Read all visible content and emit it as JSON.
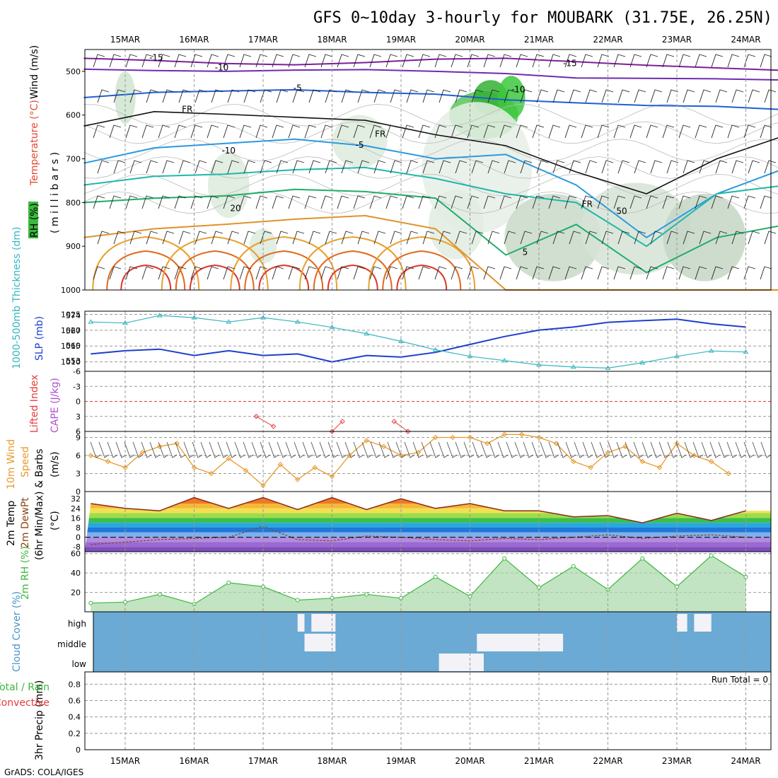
{
  "title": "GFS 0~10day 3-hourly for MOUBARK (31.75E, 26.25N)",
  "credit": "GrADS: COLA/IGES",
  "dates": [
    "15MAR",
    "16MAR",
    "17MAR",
    "18MAR",
    "19MAR",
    "20MAR",
    "21MAR",
    "22MAR",
    "23MAR",
    "24MAR"
  ],
  "colors": {
    "blue": "#1f3fcc",
    "cyan": "#34b6c0",
    "orange": "#e89a2c",
    "green": "#3cb83c",
    "red": "#e83a3a",
    "purple": "#9b30b8",
    "cloud": "#6aaad4",
    "brown": "#8b4513"
  },
  "chart_data": [
    {
      "id": "upper_air",
      "type": "contour",
      "ylabels": {
        "rh": "RH (%)",
        "temperature": "Temperature (°C)",
        "wind": "Wind (m/s)",
        "pressure": "( m i l l i b a r s )"
      },
      "yticks": [
        "500",
        "600",
        "700",
        "800",
        "900",
        "1000"
      ],
      "contour_labels": [
        "-15",
        "-15",
        "-10",
        "-10",
        "-5",
        "-5",
        "FR",
        "FR",
        "FR",
        "20",
        "5",
        "-10",
        "50"
      ],
      "isotherms": [
        {
          "label": "-15",
          "level_mb": [
            470,
            475,
            482,
            485,
            480,
            472,
            470,
            478,
            486,
            492,
            498
          ]
        },
        {
          "label": "-10",
          "level_mb": [
            495,
            498,
            500,
            497,
            496,
            500,
            505,
            515,
            516,
            517,
            520
          ]
        },
        {
          "label": "-5",
          "level_mb": [
            560,
            548,
            545,
            542,
            548,
            552,
            565,
            572,
            578,
            580,
            588
          ]
        },
        {
          "label": "FR",
          "level_mb": [
            625,
            592,
            598,
            605,
            612,
            645,
            670,
            730,
            780,
            700,
            645
          ]
        },
        {
          "label": "-5b",
          "level_mb": [
            710,
            675,
            665,
            655,
            670,
            700,
            690,
            760,
            880,
            780,
            720
          ]
        },
        {
          "label": "5",
          "level_mb": [
            760,
            740,
            735,
            725,
            720,
            745,
            780,
            800,
            900,
            780,
            760
          ]
        },
        {
          "label": "10",
          "level_mb": [
            800,
            790,
            785,
            770,
            775,
            790,
            920,
            850,
            960,
            880,
            850
          ]
        },
        {
          "label": "20",
          "level_mb": [
            880,
            860,
            850,
            838,
            830,
            860,
            1000,
            1000,
            1000,
            1000,
            1000
          ]
        }
      ]
    },
    {
      "id": "slp_thickness",
      "type": "line",
      "ylabel_left": "1000-500mb Thickness (dm)",
      "ylabel_right": "SLP (mb)",
      "yticks_thickness": [
        "574",
        "567",
        "560",
        "553"
      ],
      "yticks_slp": [
        "1025",
        "1020",
        "1015",
        "1010"
      ],
      "x_days": [
        0,
        0.5,
        1,
        1.5,
        2,
        2.5,
        3,
        3.5,
        4,
        4.5,
        5,
        5.5,
        6,
        6.5,
        7,
        7.5,
        8,
        8.5,
        9,
        9.5
      ],
      "slp_mb": [
        1012.5,
        1013.5,
        1014,
        1012,
        1013.5,
        1012,
        1012.5,
        1010,
        1012,
        1011.5,
        1013,
        1015.5,
        1018,
        1020,
        1021,
        1022.5,
        1023,
        1023.5,
        1022,
        1021
      ],
      "thickness_dm": [
        571,
        570.5,
        574,
        573,
        571,
        573,
        571,
        568.5,
        565.5,
        562,
        558,
        555,
        553,
        551,
        550,
        549.5,
        552,
        555,
        557.5,
        557
      ]
    },
    {
      "id": "lifted_index_cape",
      "type": "line",
      "ylabel_left": "Lifted Index",
      "ylabel_right": "CAPE (J/kg)",
      "yticks": [
        "-6",
        "-3",
        "0",
        "3",
        "6"
      ],
      "lifted_index": [
        {
          "day": 2.4,
          "value": 3
        },
        {
          "day": 2.65,
          "value": 5
        },
        {
          "day": 3.5,
          "value": 6
        },
        {
          "day": 3.65,
          "value": 4
        },
        {
          "day": 4.4,
          "value": 4
        },
        {
          "day": 4.6,
          "value": 6
        }
      ]
    },
    {
      "id": "wind_10m",
      "type": "line",
      "ylabel": "10m Wind Speed & Barbs (m/s)",
      "ylabel_a": "10m Wind",
      "ylabel_b": "Speed",
      "ylabel_c": "& Barbs",
      "ylabel_d": "(m/s)",
      "yticks": [
        "9",
        "6",
        "3",
        "0"
      ],
      "x_days": [
        0,
        0.25,
        0.5,
        0.75,
        1,
        1.25,
        1.5,
        1.75,
        2,
        2.25,
        2.5,
        2.75,
        3,
        3.25,
        3.5,
        3.75,
        4,
        4.25,
        4.5,
        4.75,
        5,
        5.25,
        5.5,
        5.75,
        6,
        6.25,
        6.5,
        6.75,
        7,
        7.25,
        7.5,
        7.75,
        8,
        8.25,
        8.5,
        8.75,
        9,
        9.25
      ],
      "speed_ms": [
        6,
        5,
        4,
        6.5,
        7.5,
        8,
        4,
        3,
        5.5,
        3.5,
        1,
        4.5,
        2,
        4,
        2.5,
        6,
        8.5,
        7.5,
        6,
        6.5,
        9,
        9,
        9,
        8,
        9.5,
        9.5,
        9,
        8,
        5,
        4,
        6.5,
        7.5,
        5,
        4,
        8,
        6,
        5,
        3
      ]
    },
    {
      "id": "temp_2m",
      "type": "area",
      "ylabel": "2m Temp 2m DewPt (6hr Min/Max) (°C)",
      "ylabel_a": "2m Temp",
      "ylabel_b": "2m DewPt",
      "ylabel_c": "(6hr Min/Max)",
      "ylabel_d": "(°C)",
      "yticks": [
        "32",
        "24",
        "16",
        "8",
        "0",
        "-8"
      ],
      "x_days": [
        0,
        0.5,
        1,
        1.5,
        2,
        2.5,
        3,
        3.5,
        4,
        4.5,
        5,
        5.5,
        6,
        6.5,
        7,
        7.5,
        8,
        8.5,
        9,
        9.5
      ],
      "temp_c": [
        28,
        24,
        22,
        33,
        24,
        33,
        23,
        33,
        23,
        32,
        24,
        28,
        22,
        22,
        17,
        18,
        12,
        20,
        14,
        22
      ],
      "dewpt_c": [
        -6,
        -4,
        -2,
        -1,
        0,
        9,
        -2,
        -3,
        1,
        0,
        -2,
        -3,
        -1,
        -2,
        0,
        2,
        -1,
        1,
        2,
        0
      ]
    },
    {
      "id": "rh_2m",
      "type": "area",
      "ylabel": "2m RH (%)",
      "yticks": [
        "60",
        "40",
        "20"
      ],
      "x_days": [
        0,
        0.5,
        1,
        1.5,
        2,
        2.5,
        3,
        3.5,
        4,
        4.5,
        5,
        5.5,
        6,
        6.5,
        7,
        7.5,
        8,
        8.5,
        9,
        9.5
      ],
      "rh_pct": [
        9,
        10,
        18,
        8,
        30,
        26,
        12,
        14,
        18,
        14,
        36,
        16,
        55,
        25,
        47,
        23,
        55,
        26,
        58,
        36
      ]
    },
    {
      "id": "cloud_cover",
      "type": "heatmap",
      "ylabel": "Cloud Cover (%)",
      "layers": [
        "high",
        "middle",
        "low"
      ],
      "high_days": [
        {
          "start": 3.0,
          "end": 3.1
        },
        {
          "start": 3.2,
          "end": 3.55
        },
        {
          "start": 8.5,
          "end": 8.65
        },
        {
          "start": 8.75,
          "end": 9.0
        }
      ],
      "middle_days": [
        {
          "start": 3.1,
          "end": 3.55
        },
        {
          "start": 5.6,
          "end": 6.85
        }
      ],
      "low_days": [
        {
          "start": 5.05,
          "end": 5.7
        }
      ]
    },
    {
      "id": "precip",
      "type": "bar",
      "ylabel": "3hr Precip (mm)",
      "ylabel_left_a": "Total / Rain",
      "ylabel_left_b": "Convective",
      "yticks": [
        "0.8",
        "0.6",
        "0.4",
        "0.2",
        "0"
      ],
      "values": [],
      "run_total": "Run Total = 0"
    }
  ]
}
